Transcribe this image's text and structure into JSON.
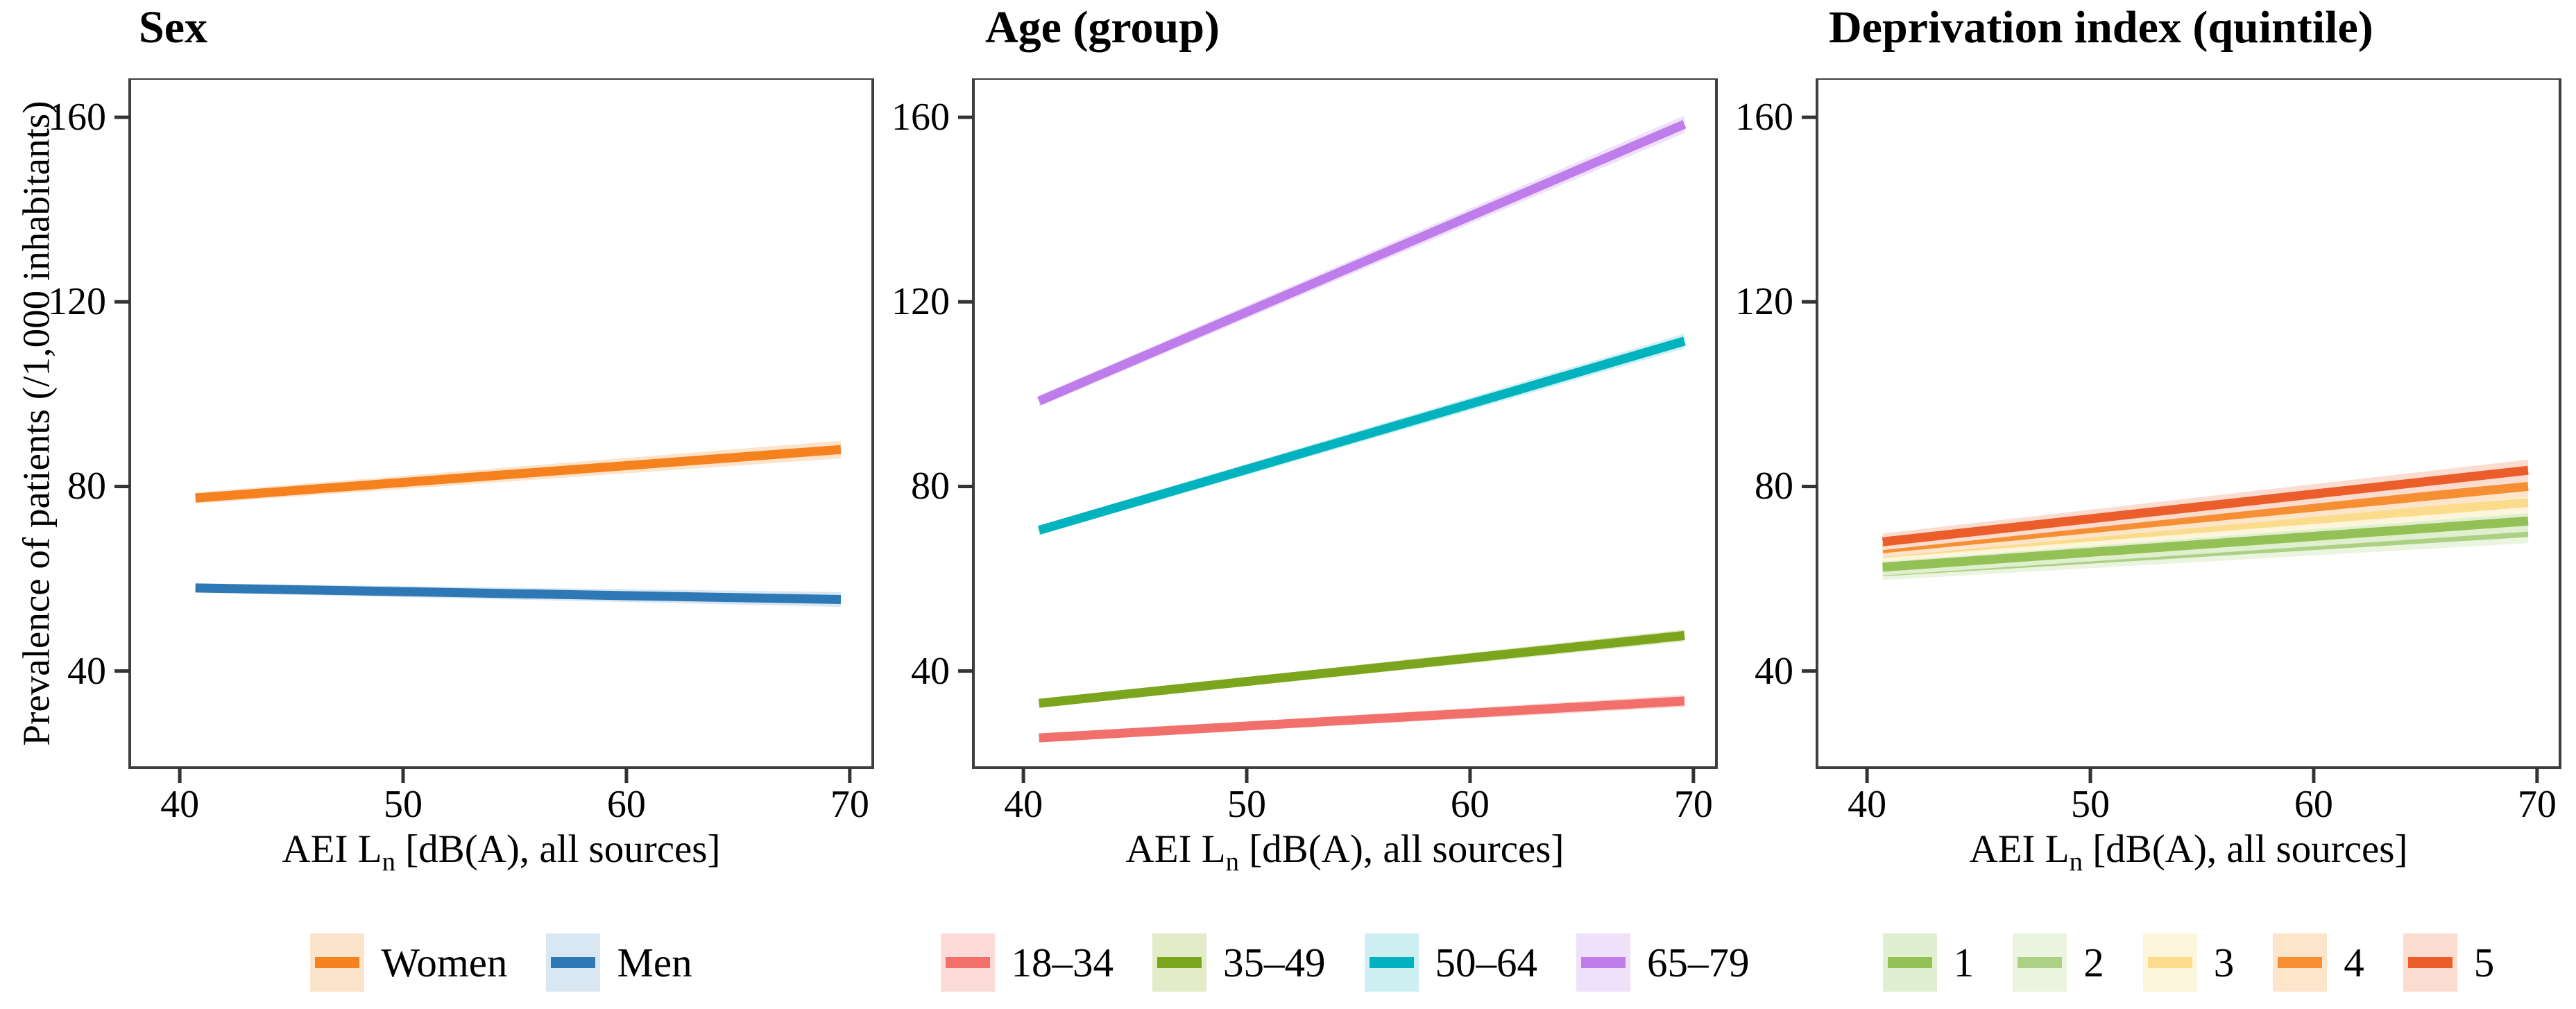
{
  "figure": {
    "background": "#FFFFFF",
    "border_color": "#3F3F3F",
    "tick_color": "#333333",
    "text_color": "#000000",
    "y_axis_title": "Prevalence of patients (/1,000 inhabitants)",
    "x_axis_title": {
      "prefix": "AEI L",
      "subscript": "n",
      "suffix": " [dB(A), all sources]"
    }
  },
  "chart_data": [
    {
      "type": "line",
      "title": "Sex",
      "xlabel": "AEI Ln [dB(A), all sources]",
      "ylabel": "Prevalence of patients (/1,000 inhabitants)",
      "xlim": [
        37.76,
        71.03
      ],
      "ylim": [
        19.05,
        168.44
      ],
      "x_ticks": [
        40,
        50,
        60,
        70
      ],
      "y_ticks": [
        40,
        80,
        120,
        160
      ],
      "grid": false,
      "legend_position": "bottom",
      "x": [
        40.7,
        69.6
      ],
      "series": [
        {
          "name": "Women",
          "values": [
            77.5,
            88.0
          ],
          "color": "#F5821E",
          "ribbon_color": "#FCE3CC",
          "band_halfwidth": [
            1.2,
            1.9
          ],
          "z": 1
        },
        {
          "name": "Men",
          "values": [
            58.0,
            55.5
          ],
          "color": "#2E79B5",
          "ribbon_color": "#D9E7F2",
          "band_halfwidth": [
            1.0,
            1.6
          ],
          "z": 0
        }
      ]
    },
    {
      "type": "line",
      "title": "Age (group)",
      "xlabel": "AEI Ln [dB(A), all sources]",
      "ylabel": "Prevalence of patients (/1,000 inhabitants)",
      "xlim": [
        37.76,
        71.03
      ],
      "ylim": [
        19.05,
        168.44
      ],
      "x_ticks": [
        40,
        50,
        60,
        70
      ],
      "y_ticks": [
        40,
        80,
        120,
        160
      ],
      "grid": false,
      "legend_position": "bottom",
      "x": [
        40.7,
        69.6
      ],
      "series": [
        {
          "name": "18–34",
          "values": [
            25.5,
            33.5
          ],
          "color": "#F1706B",
          "ribbon_color": "#FBDAD8",
          "band_halfwidth": [
            0.8,
            1.3
          ],
          "z": 0
        },
        {
          "name": "35–49",
          "values": [
            33.0,
            47.7
          ],
          "color": "#7AA51C",
          "ribbon_color": "#E3EBC9",
          "band_halfwidth": [
            0.8,
            1.3
          ],
          "z": 1
        },
        {
          "name": "50–64",
          "values": [
            70.5,
            111.5
          ],
          "color": "#00B3BE",
          "ribbon_color": "#CDEFF1",
          "band_halfwidth": [
            1.0,
            1.6
          ],
          "z": 2
        },
        {
          "name": "65–79",
          "values": [
            98.5,
            158.5
          ],
          "color": "#BF7DEB",
          "ribbon_color": "#EFE1FA",
          "band_halfwidth": [
            1.2,
            1.9
          ],
          "z": 3
        }
      ]
    },
    {
      "type": "line",
      "title": "Deprivation index (quintile)",
      "xlabel": "AEI Ln [dB(A), all sources]",
      "ylabel": "Prevalence of patients (/1,000 inhabitants)",
      "xlim": [
        37.76,
        71.03
      ],
      "ylim": [
        19.05,
        168.44
      ],
      "x_ticks": [
        40,
        50,
        60,
        70
      ],
      "y_ticks": [
        40,
        80,
        120,
        160
      ],
      "grid": false,
      "legend_position": "bottom",
      "x": [
        40.7,
        69.6
      ],
      "series": [
        {
          "name": "1",
          "values": [
            62.5,
            72.5
          ],
          "color": "#93C155",
          "ribbon_color": "#E0EFD0",
          "band_halfwidth": [
            1.8,
            2.3
          ],
          "z": 1
        },
        {
          "name": "2",
          "values": [
            61.5,
            70.0
          ],
          "color": "#ACD185",
          "ribbon_color": "#EBF4DF",
          "band_halfwidth": [
            1.8,
            2.3
          ],
          "z": 0
        },
        {
          "name": "3",
          "values": [
            65.5,
            76.5
          ],
          "color": "#FADC8C",
          "ribbon_color": "#FDF6DC",
          "band_halfwidth": [
            1.8,
            2.3
          ],
          "z": 2
        },
        {
          "name": "4",
          "values": [
            66.5,
            80.0
          ],
          "color": "#F68F33",
          "ribbon_color": "#FCE5CA",
          "band_halfwidth": [
            1.8,
            2.3
          ],
          "z": 3
        },
        {
          "name": "5",
          "values": [
            68.0,
            83.5
          ],
          "color": "#EB5E2B",
          "ribbon_color": "#FADCD0",
          "band_halfwidth": [
            1.8,
            2.3
          ],
          "z": 4
        }
      ]
    }
  ]
}
